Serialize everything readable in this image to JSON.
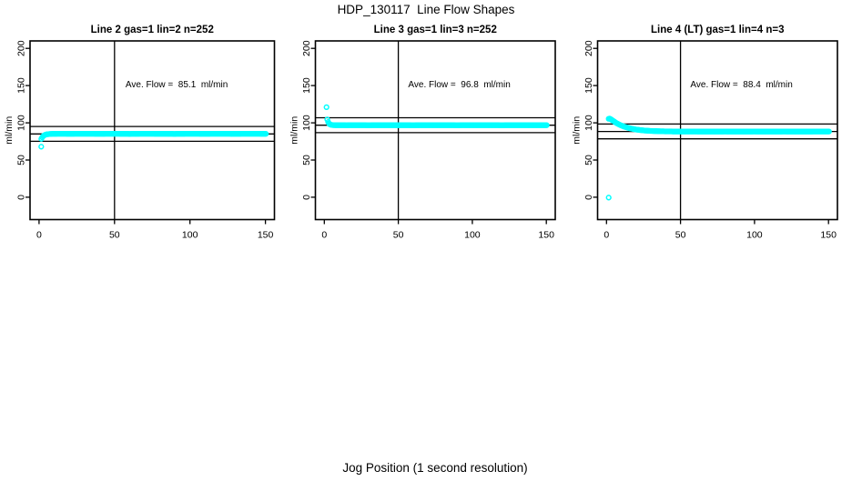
{
  "figure": {
    "title": "HDP_130117  Line Flow Shapes",
    "xlabel": "Jog Position (1 second resolution)",
    "background_color": "#ffffff",
    "line_color": "#000000",
    "point_color": "#00ffff"
  },
  "chart_data": [
    {
      "type": "scatter",
      "title": "Line 2 gas=1 lin=2 n=252",
      "ylabel": "ml/min",
      "annotation": "Ave. Flow =  85.1  ml/min",
      "ave_flow_ml_min": 85.1,
      "n_points": 252,
      "xlim": [
        -6,
        156
      ],
      "ylim": [
        -30,
        210
      ],
      "xticks": [
        0,
        50,
        100,
        150
      ],
      "yticks": [
        0,
        50,
        100,
        150,
        200
      ],
      "vline_x": 50,
      "hlines_y": [
        75.1,
        85.1,
        95.1
      ],
      "marker_step_x": 0.6,
      "x_end": 150,
      "outlier_points": [
        [
          1.4,
          68
        ]
      ],
      "curve_points": [
        [
          1.5,
          78.5
        ],
        [
          2,
          80.3
        ],
        [
          2.5,
          81.6
        ],
        [
          3,
          82.6
        ],
        [
          3.5,
          83.3
        ],
        [
          4,
          83.9
        ],
        [
          5,
          84.5
        ],
        [
          6,
          84.8
        ],
        [
          8,
          85.1
        ],
        [
          10,
          85.2
        ],
        [
          15,
          85.3
        ],
        [
          20,
          85.2
        ],
        [
          30,
          85.3
        ],
        [
          40,
          85.2
        ],
        [
          50,
          85.3
        ],
        [
          60,
          85.1
        ],
        [
          70,
          85.3
        ],
        [
          80,
          85.2
        ],
        [
          90,
          85.1
        ],
        [
          100,
          85.3
        ],
        [
          110,
          85.2
        ],
        [
          120,
          85.3
        ],
        [
          130,
          85.2
        ],
        [
          140,
          85.3
        ],
        [
          150,
          85.2
        ]
      ]
    },
    {
      "type": "scatter",
      "title": "Line 3 gas=1 lin=3 n=252",
      "ylabel": "ml/min",
      "annotation": "Ave. Flow =  96.8  ml/min",
      "ave_flow_ml_min": 96.8,
      "n_points": 252,
      "xlim": [
        -6,
        156
      ],
      "ylim": [
        -30,
        210
      ],
      "xticks": [
        0,
        50,
        100,
        150
      ],
      "yticks": [
        0,
        50,
        100,
        150,
        200
      ],
      "vline_x": 50,
      "hlines_y": [
        86.8,
        96.8,
        106.8
      ],
      "marker_step_x": 0.6,
      "x_end": 150,
      "outlier_points": [
        [
          1.5,
          121
        ]
      ],
      "curve_points": [
        [
          2,
          104.5
        ],
        [
          2.5,
          101.5
        ],
        [
          3,
          99.5
        ],
        [
          3.5,
          98.3
        ],
        [
          4,
          97.6
        ],
        [
          5,
          97.1
        ],
        [
          6,
          96.9
        ],
        [
          8,
          96.8
        ],
        [
          10,
          96.8
        ],
        [
          15,
          96.7
        ],
        [
          20,
          96.8
        ],
        [
          30,
          96.7
        ],
        [
          40,
          96.8
        ],
        [
          50,
          96.8
        ],
        [
          60,
          96.7
        ],
        [
          70,
          96.8
        ],
        [
          80,
          96.8
        ],
        [
          90,
          96.7
        ],
        [
          100,
          96.8
        ],
        [
          110,
          96.8
        ],
        [
          120,
          96.7
        ],
        [
          130,
          96.8
        ],
        [
          140,
          96.8
        ],
        [
          150,
          96.8
        ]
      ]
    },
    {
      "type": "scatter",
      "title": "Line 4 (LT) gas=1 lin=4 n=3",
      "ylabel": "ml/min",
      "annotation": "Ave. Flow =  88.4  ml/min",
      "ave_flow_ml_min": 88.4,
      "n_points": 3,
      "xlim": [
        -6,
        156
      ],
      "ylim": [
        -30,
        210
      ],
      "xticks": [
        0,
        50,
        100,
        150
      ],
      "yticks": [
        0,
        50,
        100,
        150,
        200
      ],
      "vline_x": 50,
      "hlines_y": [
        78.4,
        88.4,
        98.4
      ],
      "marker_step_x": 0.6,
      "x_end": 150,
      "outlier_points": [
        [
          1.5,
          -0.5
        ]
      ],
      "curve_points": [
        [
          1.5,
          105.5
        ],
        [
          2,
          105.8
        ],
        [
          3,
          104.8
        ],
        [
          4,
          103.4
        ],
        [
          5,
          102
        ],
        [
          6,
          100.6
        ],
        [
          7,
          99.4
        ],
        [
          8,
          98.3
        ],
        [
          10,
          96.4
        ],
        [
          12,
          94.9
        ],
        [
          14,
          93.6
        ],
        [
          16,
          92.6
        ],
        [
          18,
          91.7
        ],
        [
          20,
          91
        ],
        [
          23,
          90.2
        ],
        [
          26,
          89.6
        ],
        [
          30,
          89.1
        ],
        [
          35,
          88.7
        ],
        [
          40,
          88.5
        ],
        [
          50,
          88.3
        ],
        [
          60,
          88.3
        ],
        [
          70,
          88.2
        ],
        [
          80,
          88.3
        ],
        [
          90,
          88.2
        ],
        [
          100,
          88.3
        ],
        [
          110,
          88.2
        ],
        [
          120,
          88.3
        ],
        [
          130,
          88.2
        ],
        [
          140,
          88.3
        ],
        [
          150,
          88.3
        ]
      ]
    }
  ]
}
